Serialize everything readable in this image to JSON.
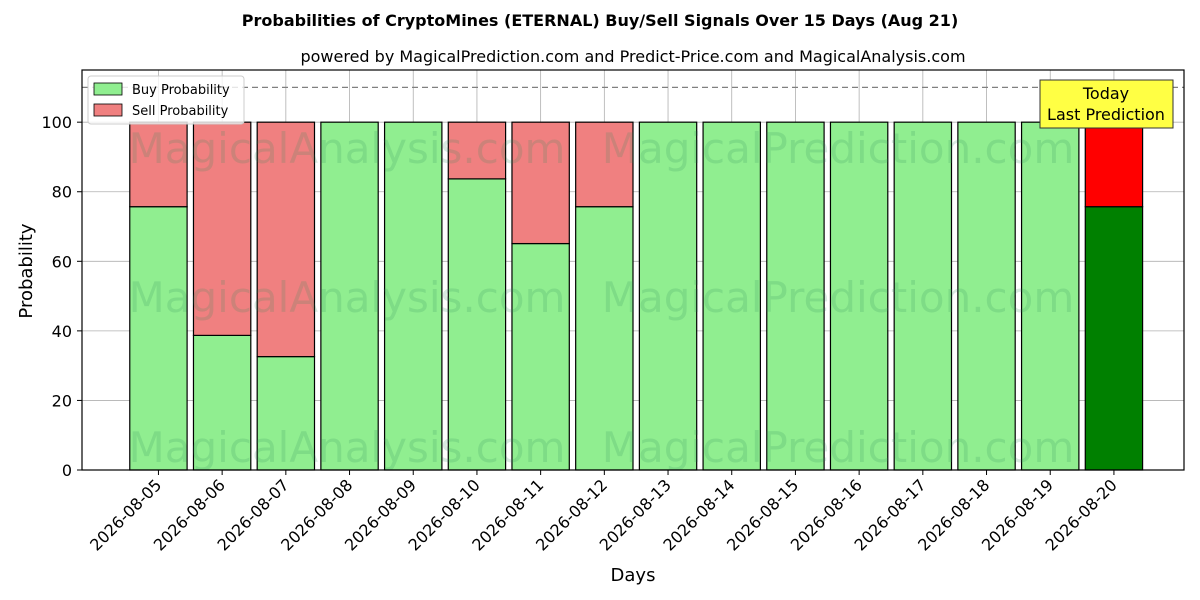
{
  "title": "Probabilities of CryptoMines (ETERNAL) Buy/Sell Signals Over 15 Days (Aug 21)",
  "subtitle": "powered by MagicalPrediction.com and Predict-Price.com and MagicalAnalysis.com",
  "watermarks": [
    "MagicalAnalysis.com",
    "MagicalPrediction.com"
  ],
  "annotation": {
    "line1": "Today",
    "line2": "Last Prediction"
  },
  "colors": {
    "buy": "#90ee90",
    "sell": "#f08080",
    "buy_today": "#008000",
    "sell_today": "#ff0000",
    "annotation_bg": "#ffff44"
  },
  "chart_data": {
    "type": "bar",
    "stacked": true,
    "xlabel": "Days",
    "ylabel": "Probability",
    "ylim": [
      0,
      115
    ],
    "yticks": [
      0,
      20,
      40,
      60,
      80,
      100
    ],
    "reference_line": 110,
    "grid": true,
    "legend_position": "top-left",
    "categories": [
      "2026-08-05",
      "2026-08-06",
      "2026-08-07",
      "2026-08-08",
      "2026-08-09",
      "2026-08-10",
      "2026-08-11",
      "2026-08-12",
      "2026-08-13",
      "2026-08-14",
      "2026-08-15",
      "2026-08-16",
      "2026-08-17",
      "2026-08-18",
      "2026-08-19",
      "2026-08-20"
    ],
    "series": [
      {
        "name": "Buy Probability",
        "values": [
          75.7,
          38.7,
          32.6,
          100,
          100,
          83.7,
          65.1,
          75.7,
          100,
          100,
          100,
          100,
          100,
          100,
          100,
          75.7
        ]
      },
      {
        "name": "Sell Probability",
        "values": [
          24.3,
          61.3,
          67.4,
          0,
          0,
          16.3,
          34.9,
          24.3,
          0,
          0,
          0,
          0,
          0,
          0,
          0,
          24.3
        ]
      }
    ]
  }
}
